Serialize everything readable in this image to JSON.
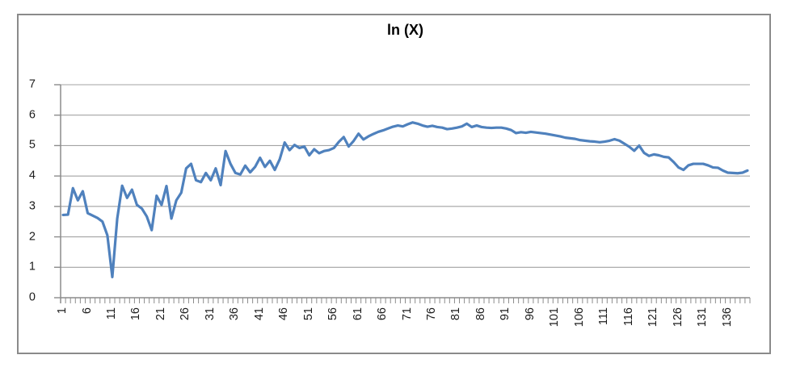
{
  "chart_data": {
    "type": "line",
    "title": "ln (X)",
    "xlabel": "",
    "ylabel": "",
    "x_range": [
      1,
      140
    ],
    "ylim": [
      0,
      7
    ],
    "y_step": 1,
    "grid": "horizontal",
    "legend": "none",
    "x_label_rotation": -90,
    "x_tick_labels": [
      "1",
      "6",
      "11",
      "16",
      "21",
      "26",
      "31",
      "36",
      "41",
      "46",
      "51",
      "56",
      "61",
      "66",
      "71",
      "76",
      "81",
      "86",
      "91",
      "96",
      "101",
      "106",
      "111",
      "116",
      "121",
      "126",
      "131",
      "136"
    ],
    "y_tick_labels": [
      "0",
      "1",
      "2",
      "3",
      "4",
      "5",
      "6",
      "7"
    ],
    "values": [
      2.72,
      2.73,
      3.6,
      3.2,
      3.5,
      2.78,
      2.7,
      2.62,
      2.5,
      2.05,
      0.68,
      2.6,
      3.68,
      3.28,
      3.55,
      3.05,
      2.93,
      2.67,
      2.22,
      3.35,
      3.05,
      3.67,
      2.6,
      3.2,
      3.45,
      4.25,
      4.4,
      3.86,
      3.8,
      4.1,
      3.86,
      4.25,
      3.7,
      4.82,
      4.4,
      4.1,
      4.05,
      4.34,
      4.12,
      4.3,
      4.6,
      4.3,
      4.5,
      4.2,
      4.55,
      5.1,
      4.85,
      5.02,
      4.92,
      4.97,
      4.68,
      4.88,
      4.75,
      4.82,
      4.85,
      4.92,
      5.12,
      5.28,
      4.97,
      5.15,
      5.39,
      5.2,
      5.3,
      5.38,
      5.45,
      5.5,
      5.56,
      5.62,
      5.66,
      5.63,
      5.7,
      5.76,
      5.72,
      5.66,
      5.62,
      5.65,
      5.61,
      5.59,
      5.54,
      5.56,
      5.59,
      5.63,
      5.72,
      5.61,
      5.66,
      5.61,
      5.59,
      5.58,
      5.59,
      5.59,
      5.56,
      5.51,
      5.41,
      5.44,
      5.42,
      5.45,
      5.43,
      5.41,
      5.39,
      5.36,
      5.33,
      5.3,
      5.26,
      5.24,
      5.22,
      5.18,
      5.16,
      5.14,
      5.13,
      5.11,
      5.13,
      5.16,
      5.21,
      5.16,
      5.06,
      4.96,
      4.83,
      5.0,
      4.76,
      4.66,
      4.71,
      4.68,
      4.63,
      4.61,
      4.46,
      4.28,
      4.2,
      4.35,
      4.4,
      4.4,
      4.4,
      4.35,
      4.28,
      4.27,
      4.18,
      4.11,
      4.1,
      4.09,
      4.11,
      4.18
    ]
  },
  "style": {
    "series_color": "#4F81BD",
    "gridline_color": "#a3a3a3",
    "axis_color": "#8c8c8c",
    "tick_label_color": "#1c1c1c",
    "frame_border_color": "#8a8a8a",
    "background_color": "#ffffff",
    "line_width": 3.2
  }
}
